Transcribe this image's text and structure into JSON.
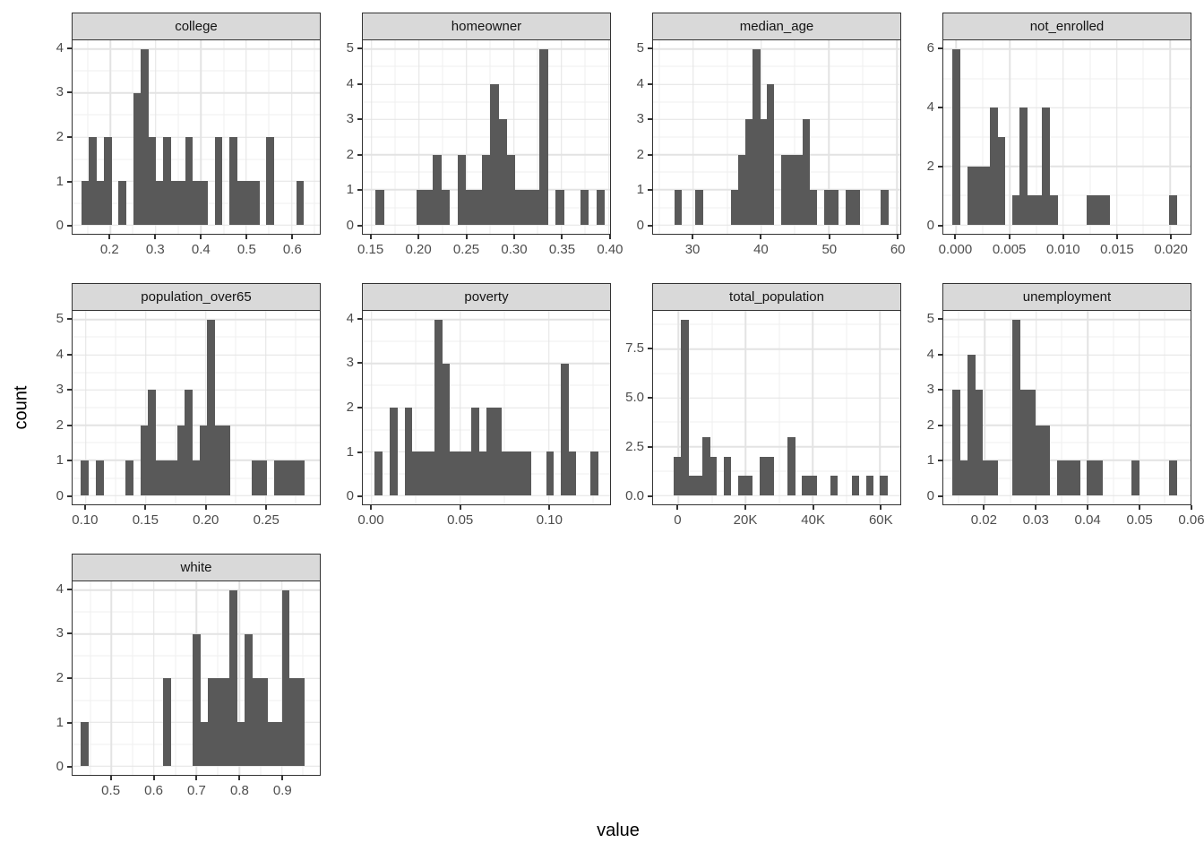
{
  "figure": {
    "y_axis_title": "count",
    "x_axis_title": "value",
    "facet_titles": [
      "college",
      "homeowner",
      "median_age",
      "not_enrolled",
      "population_over65",
      "poverty",
      "total_population",
      "unemployment",
      "white"
    ],
    "colors": {
      "bar": "#595959",
      "strip_bg": "#d9d9d9",
      "panel_border": "#333333",
      "grid_major": "#e3e3e3",
      "grid_minor": "#efefef",
      "axis_text": "#4d4d4d",
      "tick_mark": "#333333",
      "background": "#ffffff"
    }
  },
  "chart_data": [
    {
      "type": "bar",
      "subtype": "histogram",
      "title": "college",
      "x_ticks": [
        0.2,
        0.3,
        0.4,
        0.5,
        0.6
      ],
      "x_tick_labels": [
        "0.2",
        "0.3",
        "0.4",
        "0.5",
        "0.6"
      ],
      "x_domain": [
        0.117,
        0.662
      ],
      "y_ticks": [
        0,
        1,
        2,
        3,
        4
      ],
      "y_tick_labels": [
        "0",
        "1",
        "2",
        "3",
        "4"
      ],
      "y_max": 4,
      "bin_start": 0.137,
      "bin_width": 0.0163,
      "counts": [
        1,
        2,
        1,
        2,
        0,
        1,
        0,
        3,
        4,
        2,
        1,
        2,
        1,
        1,
        2,
        1,
        1,
        0,
        2,
        0,
        2,
        1,
        1,
        1,
        0,
        2,
        0,
        0,
        0,
        1
      ]
    },
    {
      "type": "bar",
      "subtype": "histogram",
      "title": "homeowner",
      "x_ticks": [
        0.15,
        0.2,
        0.25,
        0.3,
        0.35,
        0.4
      ],
      "x_tick_labels": [
        "0.15",
        "0.20",
        "0.25",
        "0.30",
        "0.35",
        "0.40"
      ],
      "x_domain": [
        0.141,
        0.401
      ],
      "y_ticks": [
        0,
        1,
        2,
        3,
        4,
        5
      ],
      "y_tick_labels": [
        "0",
        "1",
        "2",
        "3",
        "4",
        "5"
      ],
      "y_max": 5,
      "bin_start": 0.1545,
      "bin_width": 0.0086,
      "counts": [
        1,
        0,
        0,
        0,
        0,
        1,
        1,
        2,
        1,
        0,
        2,
        1,
        1,
        2,
        4,
        3,
        2,
        1,
        1,
        1,
        5,
        0,
        1,
        0,
        0,
        1,
        0,
        1,
        0,
        0
      ]
    },
    {
      "type": "bar",
      "subtype": "histogram",
      "title": "median_age",
      "x_ticks": [
        30,
        40,
        50,
        60
      ],
      "x_tick_labels": [
        "30",
        "40",
        "50",
        "60"
      ],
      "x_domain": [
        24.1,
        60.5
      ],
      "y_ticks": [
        0,
        1,
        2,
        3,
        4,
        5
      ],
      "y_tick_labels": [
        "0",
        "1",
        "2",
        "3",
        "4",
        "5"
      ],
      "y_max": 5,
      "bin_start": 27.2,
      "bin_width": 1.05,
      "counts": [
        1,
        0,
        0,
        1,
        0,
        0,
        0,
        0,
        1,
        2,
        3,
        5,
        3,
        4,
        0,
        2,
        2,
        2,
        3,
        1,
        0,
        1,
        1,
        0,
        1,
        1,
        0,
        0,
        0,
        1
      ]
    },
    {
      "type": "bar",
      "subtype": "histogram",
      "title": "not_enrolled",
      "x_ticks": [
        0.0,
        0.005,
        0.01,
        0.015,
        0.02
      ],
      "x_tick_labels": [
        "0.000",
        "0.005",
        "0.010",
        "0.015",
        "0.020"
      ],
      "x_domain": [
        -0.0012,
        0.0219
      ],
      "y_ticks": [
        0,
        2,
        4,
        6
      ],
      "y_tick_labels": [
        "0",
        "2",
        "4",
        "6"
      ],
      "y_max": 6,
      "bin_start": -0.00037,
      "bin_width": 0.0007,
      "counts": [
        6,
        0,
        2,
        2,
        2,
        4,
        3,
        0,
        1,
        4,
        1,
        1,
        4,
        1,
        0,
        0,
        0,
        0,
        1,
        1,
        1,
        0,
        0,
        0,
        0,
        0,
        0,
        0,
        0,
        1
      ]
    },
    {
      "type": "bar",
      "subtype": "histogram",
      "title": "population_over65",
      "x_ticks": [
        0.1,
        0.15,
        0.2,
        0.25
      ],
      "x_tick_labels": [
        "0.10",
        "0.15",
        "0.20",
        "0.25"
      ],
      "x_domain": [
        0.089,
        0.295
      ],
      "y_ticks": [
        0,
        1,
        2,
        3,
        4,
        5
      ],
      "y_tick_labels": [
        "0",
        "1",
        "2",
        "3",
        "4",
        "5"
      ],
      "y_max": 5,
      "bin_start": 0.0958,
      "bin_width": 0.0062,
      "counts": [
        1,
        0,
        1,
        0,
        0,
        0,
        1,
        0,
        2,
        3,
        1,
        1,
        1,
        2,
        3,
        1,
        2,
        5,
        2,
        2,
        0,
        0,
        0,
        1,
        1,
        0,
        1,
        1,
        1,
        1
      ]
    },
    {
      "type": "bar",
      "subtype": "histogram",
      "title": "poverty",
      "x_ticks": [
        0.0,
        0.05,
        0.1
      ],
      "x_tick_labels": [
        "0.00",
        "0.05",
        "0.10"
      ],
      "x_domain": [
        -0.005,
        0.1344
      ],
      "y_ticks": [
        0,
        1,
        2,
        3,
        4
      ],
      "y_tick_labels": [
        "0",
        "1",
        "2",
        "3",
        "4"
      ],
      "y_max": 4,
      "bin_start": 0.0017,
      "bin_width": 0.0042,
      "counts": [
        1,
        0,
        2,
        0,
        2,
        1,
        1,
        1,
        4,
        3,
        1,
        1,
        1,
        2,
        1,
        2,
        2,
        1,
        1,
        1,
        1,
        0,
        0,
        1,
        0,
        3,
        1,
        0,
        0,
        1
      ]
    },
    {
      "type": "bar",
      "subtype": "histogram",
      "title": "total_population",
      "x_ticks": [
        0,
        20000,
        40000,
        60000
      ],
      "x_tick_labels": [
        "0",
        "20K",
        "40K",
        "60K"
      ],
      "x_domain": [
        -7500,
        66000
      ],
      "y_ticks": [
        0,
        2.5,
        5.0,
        7.5
      ],
      "y_tick_labels": [
        "0.0",
        "2.5",
        "5.0",
        "7.5"
      ],
      "y_max": 9,
      "bin_start": -1270,
      "bin_width": 2112,
      "counts": [
        2,
        9,
        1,
        1,
        3,
        2,
        0,
        2,
        0,
        1,
        1,
        0,
        2,
        2,
        0,
        0,
        3,
        0,
        1,
        1,
        0,
        0,
        1,
        0,
        0,
        1,
        0,
        1,
        0,
        1
      ]
    },
    {
      "type": "bar",
      "subtype": "histogram",
      "title": "unemployment",
      "x_ticks": [
        0.02,
        0.03,
        0.04,
        0.05,
        0.06
      ],
      "x_tick_labels": [
        "0.02",
        "0.03",
        "0.04",
        "0.05",
        "0.06"
      ],
      "x_domain": [
        0.012,
        0.06
      ],
      "y_ticks": [
        0,
        1,
        2,
        3,
        4,
        5
      ],
      "y_tick_labels": [
        "0",
        "1",
        "2",
        "3",
        "4",
        "5"
      ],
      "y_max": 5,
      "bin_start": 0.0138,
      "bin_width": 0.00145,
      "counts": [
        3,
        1,
        4,
        3,
        1,
        1,
        0,
        0,
        5,
        3,
        3,
        2,
        2,
        0,
        1,
        1,
        1,
        0,
        1,
        1,
        0,
        0,
        0,
        0,
        1,
        0,
        0,
        0,
        0,
        1
      ]
    },
    {
      "type": "bar",
      "subtype": "histogram",
      "title": "white",
      "x_ticks": [
        0.5,
        0.6,
        0.7,
        0.8,
        0.9
      ],
      "x_tick_labels": [
        "0.5",
        "0.6",
        "0.7",
        "0.8",
        "0.9"
      ],
      "x_domain": [
        0.409,
        0.989
      ],
      "y_ticks": [
        0,
        1,
        2,
        3,
        4
      ],
      "y_tick_labels": [
        "0",
        "1",
        "2",
        "3",
        "4"
      ],
      "y_max": 4,
      "bin_start": 0.4288,
      "bin_width": 0.01745,
      "counts": [
        1,
        0,
        0,
        0,
        0,
        0,
        0,
        0,
        0,
        0,
        0,
        2,
        0,
        0,
        0,
        3,
        1,
        2,
        2,
        2,
        4,
        1,
        3,
        2,
        2,
        1,
        1,
        4,
        2,
        2
      ]
    }
  ]
}
